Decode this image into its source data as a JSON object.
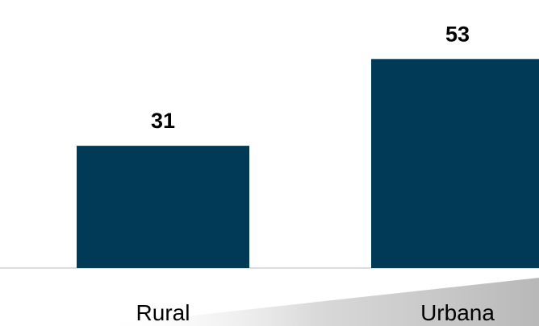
{
  "chart_data": {
    "type": "bar",
    "categories": [
      "Rural",
      "Urbana"
    ],
    "values": [
      31,
      53
    ],
    "title": "",
    "xlabel": "",
    "ylabel": "",
    "ylim": [
      0,
      60
    ],
    "grid": false,
    "legend": "none"
  },
  "colors": {
    "bar": "#003a57",
    "axis": "#d0d0d0",
    "text": "#000000"
  }
}
